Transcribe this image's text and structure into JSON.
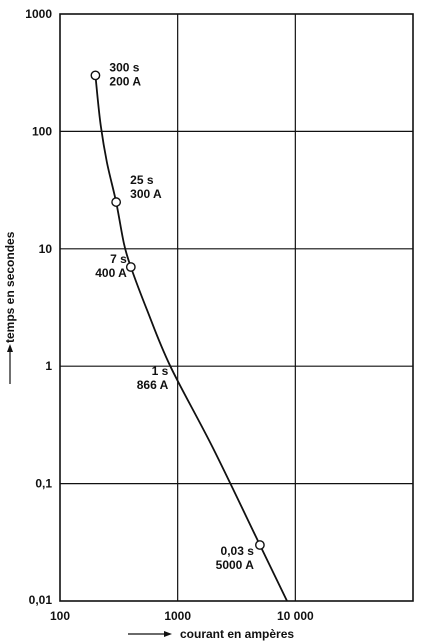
{
  "chart_data": {
    "type": "line",
    "x_scale": "log",
    "y_scale": "log",
    "xlim": [
      100,
      100000
    ],
    "ylim": [
      0.01,
      1000
    ],
    "grid": true,
    "xlabel": "courant en ampères",
    "ylabel": "temps en secondes",
    "x_ticks": [
      {
        "value": 100,
        "label": "100"
      },
      {
        "value": 1000,
        "label": "1000"
      },
      {
        "value": 10000,
        "label": "10 000"
      }
    ],
    "y_ticks": [
      {
        "value": 1000,
        "label": "1000"
      },
      {
        "value": 100,
        "label": "100"
      },
      {
        "value": 10,
        "label": "10"
      },
      {
        "value": 1,
        "label": "1"
      },
      {
        "value": 0.1,
        "label": "0,1"
      },
      {
        "value": 0.01,
        "label": "0,01"
      }
    ],
    "series": [
      {
        "points": [
          {
            "x": 200,
            "y": 300
          },
          {
            "x": 220,
            "y": 120
          },
          {
            "x": 250,
            "y": 55
          },
          {
            "x": 300,
            "y": 25
          },
          {
            "x": 350,
            "y": 11
          },
          {
            "x": 400,
            "y": 7
          },
          {
            "x": 550,
            "y": 3
          },
          {
            "x": 866,
            "y": 1
          },
          {
            "x": 2000,
            "y": 0.2
          },
          {
            "x": 5000,
            "y": 0.03
          },
          {
            "x": 8500,
            "y": 0.01
          }
        ]
      }
    ],
    "annotations": [
      {
        "x": 200,
        "y": 300,
        "line1": "300 s",
        "line2": "200 A"
      },
      {
        "x": 300,
        "y": 25,
        "line1": "25 s",
        "line2": "300 A"
      },
      {
        "x": 400,
        "y": 7,
        "line1": "7 s",
        "line2": "400 A"
      },
      {
        "x": 866,
        "y": 1,
        "line1": "1 s",
        "line2": "866 A"
      },
      {
        "x": 5000,
        "y": 0.03,
        "line1": "0,03 s",
        "line2": "5000 A"
      }
    ]
  }
}
